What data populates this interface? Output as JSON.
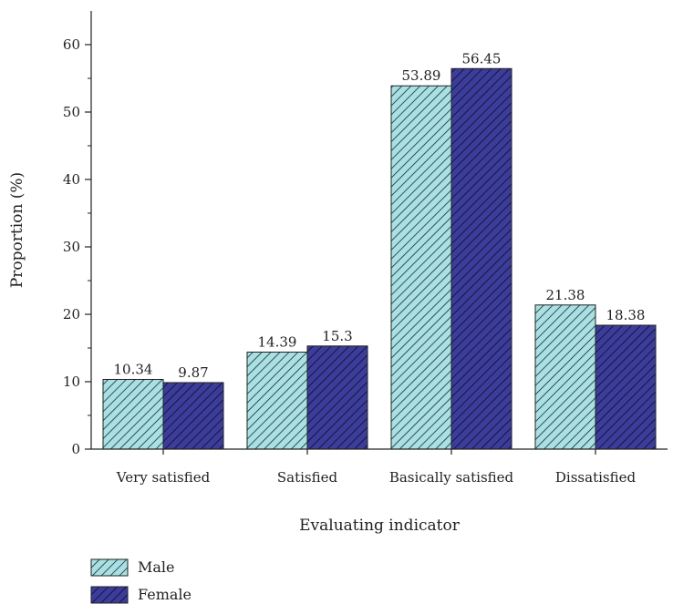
{
  "chart_data": {
    "type": "bar",
    "categories": [
      "Very satisfied",
      "Satisfied",
      "Basically satisfied",
      "Dissatisfied"
    ],
    "series": [
      {
        "name": "Male",
        "values": [
          10.34,
          14.39,
          53.89,
          21.38
        ],
        "value_labels": [
          "10.34",
          "14.39",
          "53.89",
          "21.38"
        ],
        "fill": "#a8e0e3",
        "hatch": "#1a2a2e"
      },
      {
        "name": "Female",
        "values": [
          9.87,
          15.3,
          56.45,
          18.38
        ],
        "value_labels": [
          "9.87",
          "15.3",
          "56.45",
          "18.38"
        ],
        "fill": "#3c3c9a",
        "hatch": "#0d0d2a"
      }
    ],
    "xlabel": "Evaluating indicator",
    "ylabel": "Proportion (%)",
    "ylim": [
      0,
      65
    ],
    "yticks": [
      0,
      10,
      20,
      30,
      40,
      50,
      60
    ],
    "yticklabels": [
      "0",
      "10",
      "20",
      "30",
      "40",
      "50",
      "60"
    ],
    "grid": false,
    "legend": "bottom-left"
  }
}
